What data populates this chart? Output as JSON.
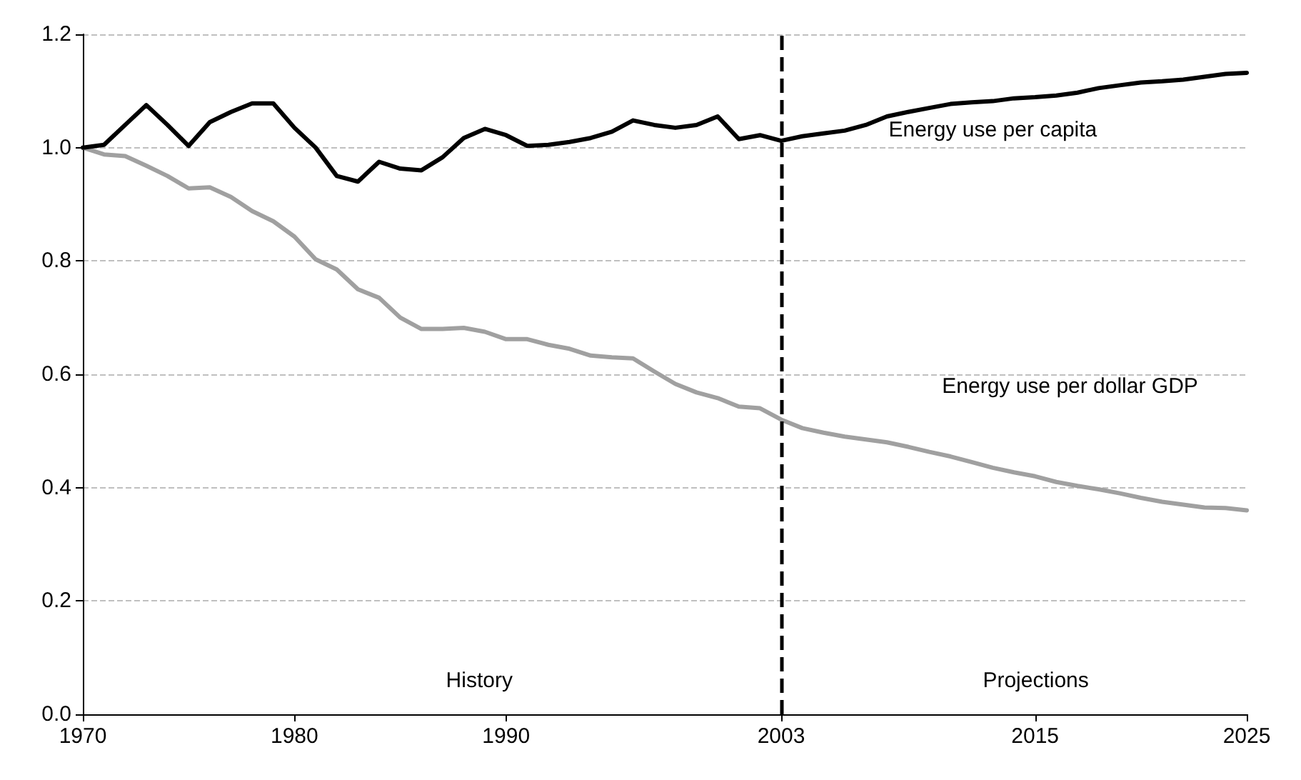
{
  "chart_data": {
    "type": "line",
    "x": [
      1970,
      1971,
      1972,
      1973,
      1974,
      1975,
      1976,
      1977,
      1978,
      1979,
      1980,
      1981,
      1982,
      1983,
      1984,
      1985,
      1986,
      1987,
      1988,
      1989,
      1990,
      1991,
      1992,
      1993,
      1994,
      1995,
      1996,
      1997,
      1998,
      1999,
      2000,
      2001,
      2002,
      2003,
      2004,
      2005,
      2006,
      2007,
      2008,
      2009,
      2010,
      2011,
      2012,
      2013,
      2014,
      2015,
      2016,
      2017,
      2018,
      2019,
      2020,
      2021,
      2022,
      2023,
      2024,
      2025
    ],
    "series": [
      {
        "name": "Energy use per capita",
        "color": "#000000",
        "values": [
          1.0,
          1.005,
          1.04,
          1.075,
          1.04,
          1.003,
          1.045,
          1.063,
          1.078,
          1.078,
          1.035,
          1.0,
          0.95,
          0.94,
          0.975,
          0.963,
          0.96,
          0.983,
          1.017,
          1.033,
          1.022,
          1.003,
          1.005,
          1.01,
          1.017,
          1.028,
          1.048,
          1.04,
          1.035,
          1.04,
          1.055,
          1.015,
          1.022,
          1.012,
          1.02,
          1.025,
          1.03,
          1.04,
          1.055,
          1.063,
          1.07,
          1.077,
          1.08,
          1.082,
          1.087,
          1.089,
          1.092,
          1.097,
          1.105,
          1.11,
          1.115,
          1.117,
          1.12,
          1.125,
          1.13,
          1.132
        ]
      },
      {
        "name": "Energy use per dollar GDP",
        "color": "#a0a0a0",
        "values": [
          1.0,
          0.988,
          0.985,
          0.968,
          0.95,
          0.928,
          0.93,
          0.913,
          0.888,
          0.87,
          0.843,
          0.803,
          0.785,
          0.75,
          0.735,
          0.7,
          0.68,
          0.68,
          0.682,
          0.675,
          0.662,
          0.662,
          0.652,
          0.645,
          0.633,
          0.63,
          0.628,
          0.605,
          0.583,
          0.568,
          0.558,
          0.543,
          0.54,
          0.52,
          0.505,
          0.497,
          0.49,
          0.485,
          0.48,
          0.472,
          0.463,
          0.455,
          0.445,
          0.435,
          0.427,
          0.42,
          0.41,
          0.403,
          0.397,
          0.39,
          0.382,
          0.375,
          0.37,
          0.365,
          0.364,
          0.36
        ]
      }
    ],
    "xlim": [
      1970,
      2025
    ],
    "xticks": [
      1970,
      1980,
      1990,
      2003,
      2015,
      2025
    ],
    "ylim": [
      0,
      1.2
    ],
    "yticks": [
      {
        "value": 0,
        "label": "0.0"
      },
      {
        "value": 0.2,
        "label": "0.2"
      },
      {
        "value": 0.4,
        "label": "0.4"
      },
      {
        "value": 0.6,
        "label": "0.6"
      },
      {
        "value": 0.8,
        "label": "0.8"
      },
      {
        "value": 1.0,
        "label": "1.0"
      },
      {
        "value": 1.2,
        "label": "1.2"
      }
    ],
    "ref_lines": [
      {
        "axis": "x",
        "value": 2003,
        "color": "#000000",
        "line_style": "dashed"
      }
    ],
    "annotations": [
      "History",
      "Projections"
    ],
    "grid": "y",
    "legend": false,
    "marker": "none",
    "line_style": "solid"
  }
}
